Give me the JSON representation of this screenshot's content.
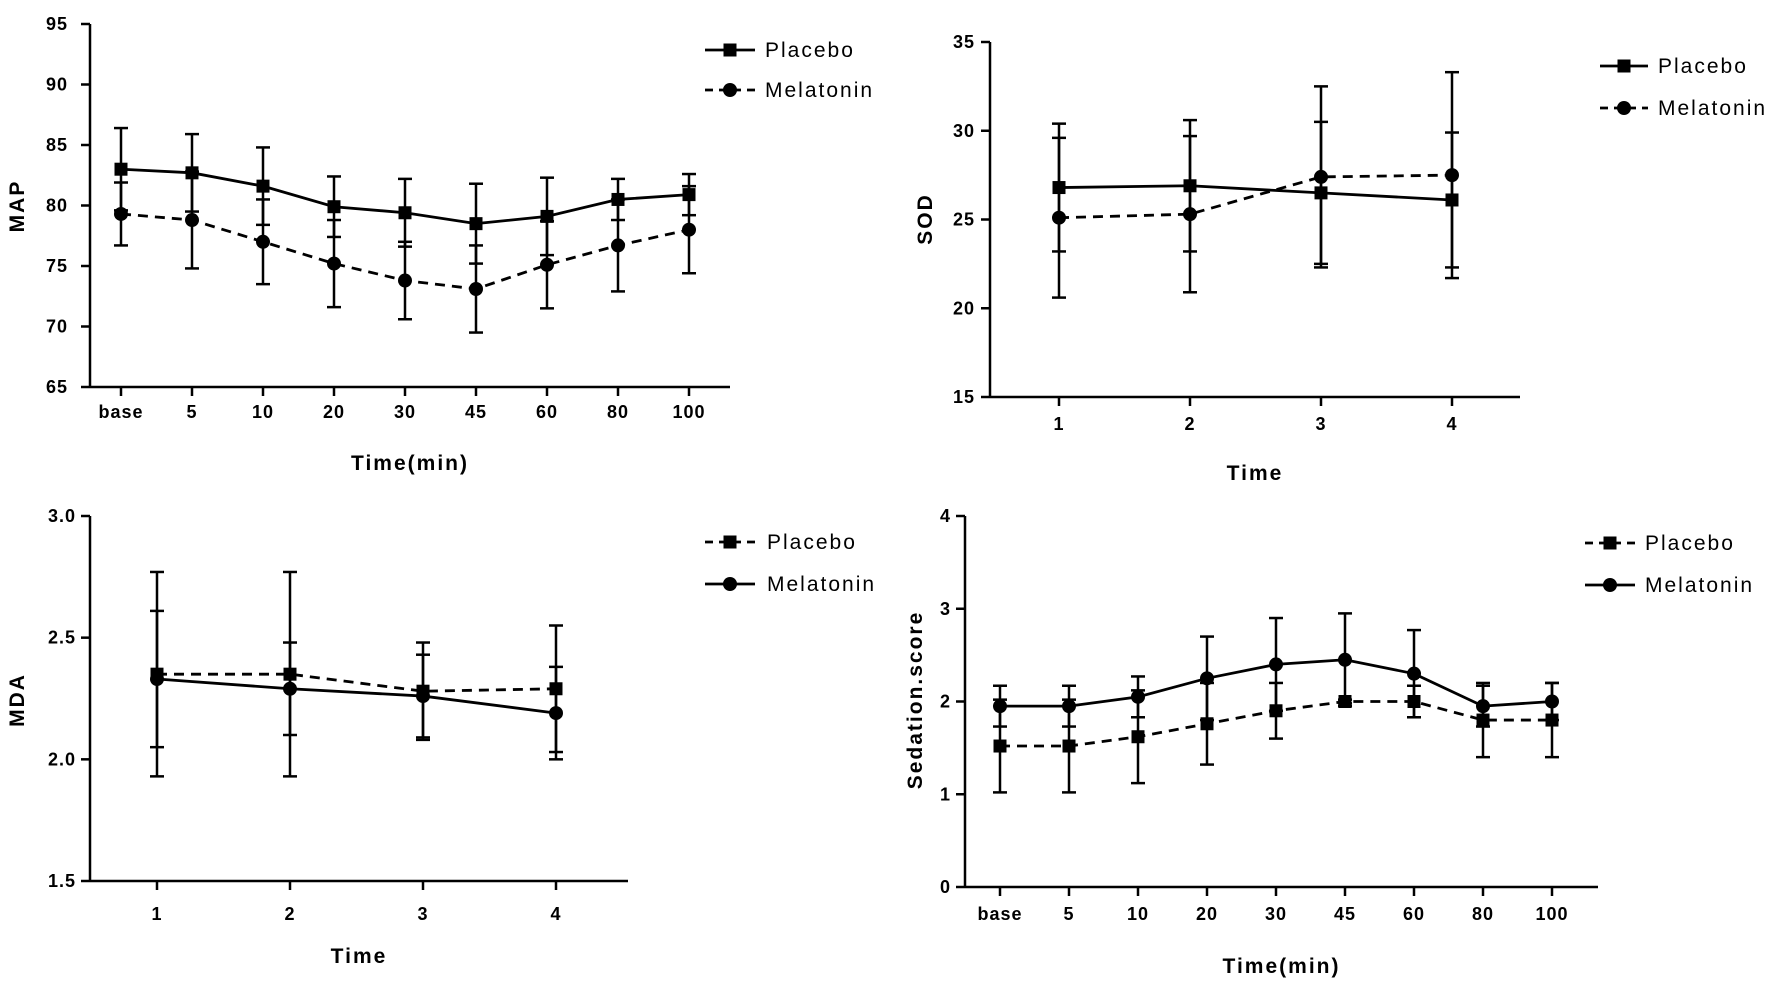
{
  "chart_data": [
    {
      "id": "map",
      "type": "line",
      "xlabel": "Time(min)",
      "ylabel": "MAP",
      "categories": [
        "base",
        "5",
        "10",
        "20",
        "30",
        "45",
        "60",
        "80",
        "100"
      ],
      "ylim": [
        65,
        95
      ],
      "yticks": [
        65,
        70,
        75,
        80,
        85,
        90,
        95
      ],
      "legend_position": "top-right",
      "series": [
        {
          "name": "Placebo",
          "marker": "square",
          "dash": "solid",
          "values": [
            83.0,
            82.7,
            81.6,
            79.9,
            79.4,
            78.5,
            79.1,
            80.5,
            80.9
          ],
          "error": [
            3.4,
            3.2,
            3.2,
            2.5,
            2.8,
            3.3,
            3.2,
            1.7,
            1.7
          ]
        },
        {
          "name": "Melatonin",
          "marker": "circle",
          "dash": "dashed",
          "values": [
            79.3,
            78.8,
            77.0,
            75.2,
            73.8,
            73.1,
            75.1,
            76.7,
            78.0
          ],
          "error": [
            2.6,
            4.0,
            3.5,
            3.6,
            3.2,
            3.6,
            3.6,
            3.8,
            3.6
          ]
        }
      ]
    },
    {
      "id": "sod",
      "type": "line",
      "xlabel": "Time",
      "ylabel": "SOD",
      "categories": [
        "1",
        "2",
        "3",
        "4"
      ],
      "ylim": [
        15,
        35
      ],
      "yticks": [
        15,
        20,
        25,
        30,
        35
      ],
      "legend_position": "top-right",
      "series": [
        {
          "name": "Placebo",
          "marker": "square",
          "dash": "solid",
          "values": [
            26.8,
            26.9,
            26.5,
            26.1
          ],
          "error": [
            3.6,
            3.7,
            4.0,
            3.8
          ]
        },
        {
          "name": "Melatonin",
          "marker": "circle",
          "dash": "dashed",
          "values": [
            25.1,
            25.3,
            27.4,
            27.5
          ],
          "error": [
            4.5,
            4.4,
            5.1,
            5.8
          ]
        }
      ]
    },
    {
      "id": "mda",
      "type": "line",
      "xlabel": "Time",
      "ylabel": "MDA",
      "categories": [
        "1",
        "2",
        "3",
        "4"
      ],
      "ylim": [
        1.5,
        3.0
      ],
      "yticks": [
        "1.5",
        "2.0",
        "2.5",
        "3.0"
      ],
      "legend_position": "top-right",
      "series": [
        {
          "name": "Placebo",
          "marker": "square",
          "dash": "dashed",
          "values": [
            2.35,
            2.35,
            2.28,
            2.29
          ],
          "error": [
            0.42,
            0.42,
            0.2,
            0.26
          ]
        },
        {
          "name": "Melatonin",
          "marker": "circle",
          "dash": "solid",
          "values": [
            2.33,
            2.29,
            2.26,
            2.19
          ],
          "error": [
            0.28,
            0.19,
            0.17,
            0.19
          ]
        }
      ]
    },
    {
      "id": "sedation",
      "type": "line",
      "xlabel": "Time(min)",
      "ylabel": "Sedation.score",
      "categories": [
        "base",
        "5",
        "10",
        "20",
        "30",
        "45",
        "60",
        "80",
        "100"
      ],
      "ylim": [
        0,
        4
      ],
      "yticks": [
        0,
        1,
        2,
        3,
        4
      ],
      "legend_position": "top-right",
      "series": [
        {
          "name": "Placebo",
          "marker": "square",
          "dash": "dashed",
          "values": [
            1.52,
            1.52,
            1.62,
            1.76,
            1.9,
            2.0,
            2.0,
            1.8,
            1.8
          ],
          "error": [
            0.5,
            0.5,
            0.5,
            0.44,
            0.3,
            0.02,
            0.17,
            0.4,
            0.4
          ]
        },
        {
          "name": "Melatonin",
          "marker": "circle",
          "dash": "solid",
          "values": [
            1.95,
            1.95,
            2.05,
            2.25,
            2.4,
            2.45,
            2.3,
            1.95,
            2.0
          ],
          "error": [
            0.22,
            0.22,
            0.22,
            0.45,
            0.5,
            0.5,
            0.47,
            0.22,
            0.2
          ]
        }
      ]
    }
  ]
}
